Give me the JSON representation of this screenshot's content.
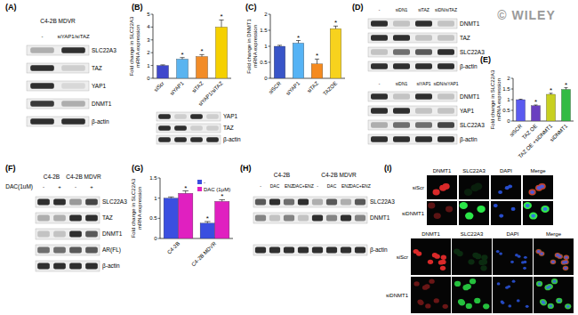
{
  "watermark": "© WILEY",
  "chart_data": [
    {
      "type": "bar",
      "panel_label": "(B)",
      "y_label": "Fold change in SLC22A3 mRNA expression",
      "categories": [
        "siScr",
        "siYAP1",
        "siTAZ",
        "siYAP1/siTAZ"
      ],
      "values": [
        1.0,
        1.5,
        1.7,
        4.0
      ],
      "errors": [
        0.05,
        0.12,
        0.15,
        0.55
      ],
      "annotations": [
        null,
        "*",
        "*",
        "*"
      ],
      "colors": [
        "#3f48cc",
        "#5ab4f0",
        "#f28c28",
        "#f5d000"
      ],
      "ylim": [
        0,
        5
      ],
      "yticks": [
        0,
        1,
        2,
        3,
        4,
        5
      ]
    },
    {
      "type": "bar",
      "panel_label": "(C)",
      "y_label": "Fold change in DNMT1 mRNA expression",
      "categories": [
        "siSCR",
        "siYAP1",
        "siTAZ",
        "TAZOE"
      ],
      "values": [
        1.0,
        1.1,
        0.45,
        1.55
      ],
      "errors": [
        0.03,
        0.08,
        0.15,
        0.08
      ],
      "annotations": [
        null,
        "*",
        "*",
        "*"
      ],
      "colors": [
        "#3955c8",
        "#56b3f5",
        "#f58a1f",
        "#f7d21e"
      ],
      "ylim": [
        0,
        2
      ],
      "yticks": [
        0,
        0.5,
        1,
        1.5,
        2
      ]
    },
    {
      "type": "bar",
      "panel_label": "(E)",
      "y_label": "Fold change in SLC22A3 mRNA expression",
      "categories": [
        "siSCR",
        "TAZ OE",
        "TAZ OE +siDNMT1",
        "siDNMT1"
      ],
      "values": [
        1.0,
        0.72,
        1.25,
        1.48
      ],
      "errors": [
        0.02,
        0.03,
        0.05,
        0.08
      ],
      "annotations": [
        null,
        "*",
        "*",
        "*"
      ],
      "colors": [
        "#5a5af0",
        "#6a40c0",
        "#c8d020",
        "#33bb44"
      ],
      "ylim": [
        0,
        2
      ],
      "yticks": [
        0,
        0.5,
        1,
        1.5,
        2
      ]
    },
    {
      "type": "bar",
      "panel_label": "(G)",
      "y_label": "Fold change in SLC22A3 mRNA expression",
      "categories": [
        "C4-2B",
        "C4-2B MDVR"
      ],
      "series": [
        {
          "name": "-",
          "color": "#3a4fe0",
          "values": [
            1.0,
            0.38
          ],
          "errors": [
            0.03,
            0.04
          ],
          "annotations": [
            null,
            "*"
          ]
        },
        {
          "name": "DAC (1μM)",
          "color": "#e020c0",
          "values": [
            1.12,
            0.92
          ],
          "errors": [
            0.06,
            0.04
          ],
          "annotations": [
            "*",
            "*"
          ]
        }
      ],
      "ylim": [
        0,
        1.5
      ],
      "yticks": [
        0,
        0.5,
        1,
        1.5
      ],
      "legend": "top-right"
    }
  ],
  "blots": [
    {
      "panel_label": "(A)",
      "groups": [
        "C4-2B MDVR"
      ],
      "lanes": [
        "-",
        "siYAP1/siTAZ"
      ],
      "rows": [
        {
          "name": "SLC22A3",
          "bands": [
            0.3,
            0.9
          ]
        },
        {
          "name": "TAZ",
          "bands": [
            0.9,
            0.15
          ]
        },
        {
          "name": "YAP1",
          "bands": [
            0.9,
            0.1
          ]
        },
        {
          "name": "DNMT1",
          "bands": [
            0.85,
            0.3
          ]
        },
        {
          "name": "β-actin",
          "bands": [
            0.9,
            0.9
          ]
        }
      ]
    },
    {
      "rows": [
        {
          "name": "YAP1",
          "bands": [
            0.9,
            0.15,
            0.9,
            0.15
          ]
        },
        {
          "name": "TAZ",
          "bands": [
            0.9,
            0.9,
            0.15,
            0.15
          ]
        },
        {
          "name": "β-actin",
          "bands": [
            0.9,
            0.9,
            0.9,
            0.9
          ]
        }
      ]
    },
    {
      "panel_label": "(D)",
      "lanes": [
        "-",
        "siDN1",
        "siTAZ",
        "siDN/siTAZ"
      ],
      "rows": [
        {
          "name": "DNMT1",
          "bands": [
            0.9,
            0.2,
            0.9,
            0.2
          ]
        },
        {
          "name": "TAZ",
          "bands": [
            0.9,
            0.9,
            0.2,
            0.2
          ]
        },
        {
          "name": "SLC22A3",
          "bands": [
            0.2,
            0.6,
            0.7,
            0.9
          ]
        },
        {
          "name": "β-actin",
          "bands": [
            0.9,
            0.9,
            0.9,
            0.9
          ]
        }
      ]
    },
    {
      "lanes": [
        "-",
        "siDN1",
        "siYAP1",
        "siDN/siYAP1"
      ],
      "rows": [
        {
          "name": "DNMT1",
          "bands": [
            0.9,
            0.2,
            0.9,
            0.2
          ]
        },
        {
          "name": "YAP1",
          "bands": [
            0.9,
            0.9,
            0.2,
            0.2
          ]
        },
        {
          "name": "SLC22A3",
          "bands": [
            0.3,
            0.6,
            0.6,
            0.8
          ]
        },
        {
          "name": "β-actin",
          "bands": [
            0.9,
            0.9,
            0.9,
            0.9
          ]
        }
      ]
    },
    {
      "panel_label": "(F)",
      "groups": [
        "C4-2B",
        "C4-2B MDVR"
      ],
      "lane_title": "DAC(1uM)",
      "lanes": [
        "-",
        "+",
        "-",
        "+"
      ],
      "rows": [
        {
          "name": "SLC22A3",
          "bands": [
            0.9,
            0.9,
            0.4,
            0.8
          ]
        },
        {
          "name": "TAZ",
          "bands": [
            0.3,
            0.3,
            0.9,
            0.9
          ]
        },
        {
          "name": "DNMT1",
          "bands": [
            0.2,
            0.2,
            0.9,
            0.7
          ]
        },
        {
          "name": "AR(FL)",
          "bands": [
            0.6,
            0.6,
            0.7,
            0.7
          ]
        },
        {
          "name": "β-actin",
          "bands": [
            0.9,
            0.9,
            0.9,
            0.9
          ]
        }
      ]
    },
    {
      "panel_label": "(H)",
      "groups": [
        "C4-2B",
        "C4-2B MDVR"
      ],
      "lanes": [
        "-",
        "DAC",
        "ENZ",
        "DAC+ENZ",
        "-",
        "DAC",
        "ENZ",
        "DAC+ENZ"
      ],
      "rows": [
        {
          "name": "SLC22A3",
          "bands": [
            0.7,
            0.9,
            0.6,
            0.9,
            0.3,
            0.7,
            0.3,
            0.7
          ]
        },
        {
          "name": "DNMT1",
          "bands": [
            0.5,
            0.2,
            0.5,
            0.2,
            0.9,
            0.5,
            0.9,
            0.5
          ]
        },
        {
          "name": "β-actin",
          "bands": [
            0.9,
            0.9,
            0.9,
            0.9,
            0.9,
            0.9,
            0.9,
            0.9
          ]
        }
      ]
    }
  ],
  "images": [
    {
      "panel_label": "(I)",
      "columns": [
        "DNMT1",
        "SLC22A3",
        "DAPI",
        "Merge"
      ],
      "rows": [
        "siScr",
        "siDNMT1"
      ],
      "channel_colors": [
        "#ff3030",
        "#30ff50",
        "#3060ff"
      ],
      "signal": [
        [
          0.85,
          0.1,
          0.8
        ],
        [
          0.35,
          0.9,
          0.8
        ]
      ]
    },
    {
      "columns": [
        "DNMT1",
        "SLC22A3",
        "DAPI",
        "Merge"
      ],
      "rows": [
        "siScr",
        "siDNMT1"
      ],
      "channel_colors": [
        "#ff3030",
        "#30ff50",
        "#3060ff"
      ],
      "signal": [
        [
          0.85,
          0.15,
          0.75
        ],
        [
          0.4,
          0.75,
          0.75
        ]
      ]
    }
  ]
}
